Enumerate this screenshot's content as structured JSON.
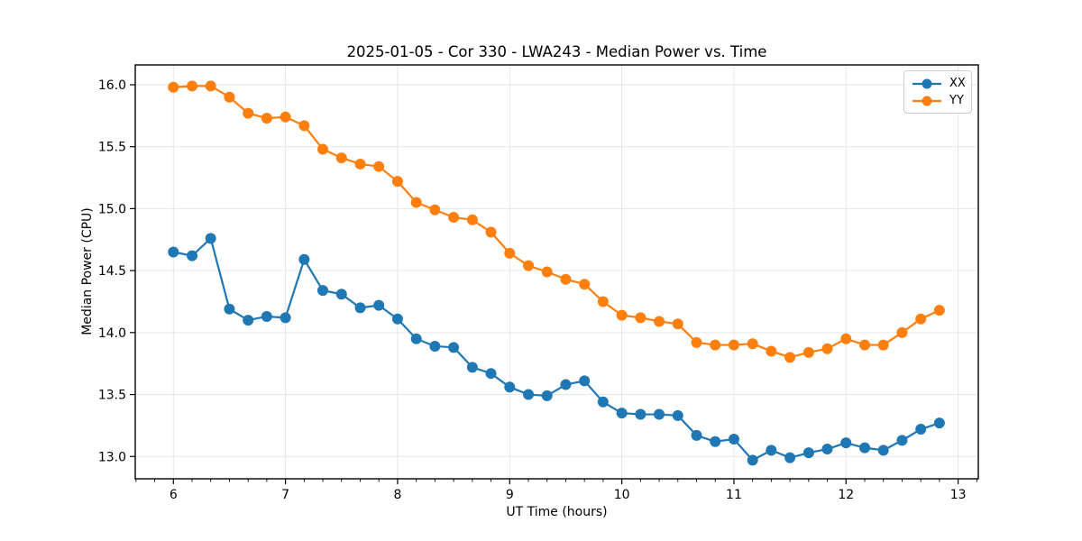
{
  "chart_data": {
    "type": "line",
    "title": "2025-01-05 - Cor 330 - LWA243 - Median Power vs. Time",
    "xlabel": "UT Time (hours)",
    "ylabel": "Median Power (CPU)",
    "xlim": [
      5.66,
      13.18
    ],
    "ylim": [
      12.82,
      16.16
    ],
    "xticks": [
      6,
      7,
      8,
      9,
      10,
      11,
      12,
      13
    ],
    "xtick_labels": [
      "6",
      "7",
      "8",
      "9",
      "10",
      "11",
      "12",
      "13"
    ],
    "yticks": [
      13.0,
      13.5,
      14.0,
      14.5,
      15.0,
      15.5,
      16.0
    ],
    "ytick_labels": [
      "13.0",
      "13.5",
      "14.0",
      "14.5",
      "15.0",
      "15.5",
      "16.0"
    ],
    "x_minor_step": 0.1666667,
    "grid": true,
    "grid_color": "#e6e6e6",
    "legend_position": "upper right",
    "x": [
      6.0,
      6.167,
      6.333,
      6.5,
      6.667,
      6.833,
      7.0,
      7.167,
      7.333,
      7.5,
      7.667,
      7.833,
      8.0,
      8.167,
      8.333,
      8.5,
      8.667,
      8.833,
      9.0,
      9.167,
      9.333,
      9.5,
      9.667,
      9.833,
      10.0,
      10.167,
      10.333,
      10.5,
      10.667,
      10.833,
      11.0,
      11.167,
      11.333,
      11.5,
      11.667,
      11.833,
      12.0,
      12.167,
      12.333,
      12.5,
      12.667,
      12.833
    ],
    "series": [
      {
        "name": "XX",
        "color": "#1f77b4",
        "values": [
          14.65,
          14.62,
          14.76,
          14.19,
          14.1,
          14.13,
          14.12,
          14.59,
          14.34,
          14.31,
          14.2,
          14.22,
          14.11,
          13.95,
          13.89,
          13.88,
          13.72,
          13.67,
          13.56,
          13.5,
          13.49,
          13.58,
          13.61,
          13.44,
          13.35,
          13.34,
          13.34,
          13.33,
          13.17,
          13.12,
          13.14,
          12.97,
          13.05,
          12.99,
          13.03,
          13.06,
          13.11,
          13.07,
          13.05,
          13.13,
          13.22,
          13.27
        ]
      },
      {
        "name": "YY",
        "color": "#ff7f0e",
        "values": [
          15.98,
          15.99,
          15.99,
          15.9,
          15.77,
          15.73,
          15.74,
          15.67,
          15.48,
          15.41,
          15.36,
          15.34,
          15.22,
          15.05,
          14.99,
          14.93,
          14.91,
          14.81,
          14.64,
          14.54,
          14.49,
          14.43,
          14.39,
          14.25,
          14.14,
          14.12,
          14.09,
          14.07,
          13.92,
          13.9,
          13.9,
          13.91,
          13.85,
          13.8,
          13.84,
          13.87,
          13.95,
          13.9,
          13.9,
          14.0,
          14.11,
          14.18
        ]
      }
    ]
  }
}
